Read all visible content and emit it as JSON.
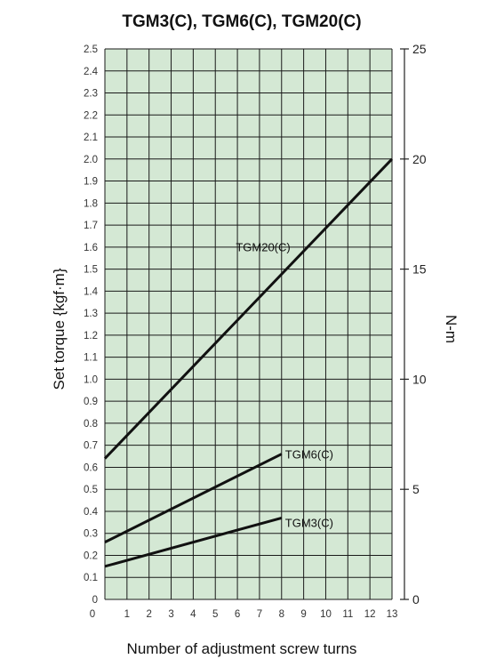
{
  "chart_data": {
    "type": "line",
    "title": "TGM3(C), TGM6(C), TGM20(C)",
    "xlabel": "Number of adjustment screw turns",
    "ylabel": "Set torque {kgf·m}",
    "y2label": "N-m",
    "xlim": [
      0,
      13
    ],
    "ylim": [
      0,
      2.5
    ],
    "y2lim": [
      0,
      25
    ],
    "grid": true,
    "x_ticks": [
      "1",
      "2",
      "3",
      "4",
      "5",
      "6",
      "7",
      "8",
      "9",
      "10",
      "11",
      "12",
      "13"
    ],
    "x_zero_label": "0",
    "y_ticks": [
      "0",
      "0.1",
      "0.2",
      "0.3",
      "0.4",
      "0.5",
      "0.6",
      "0.7",
      "0.8",
      "0.9",
      "1.0",
      "1.1",
      "1.2",
      "1.3",
      "1.4",
      "1.5",
      "1.6",
      "1.7",
      "1.8",
      "1.9",
      "2.0",
      "2.1",
      "2.2",
      "2.3",
      "2.4",
      "2.5"
    ],
    "y2_ticks": [
      "0",
      "5",
      "10",
      "15",
      "20",
      "25"
    ],
    "series": [
      {
        "name": "TGM20(C)",
        "x": [
          0,
          13
        ],
        "y": [
          0.64,
          2.0
        ]
      },
      {
        "name": "TGM6(C)",
        "x": [
          0,
          8
        ],
        "y": [
          0.26,
          0.66
        ]
      },
      {
        "name": "TGM3(C)",
        "x": [
          0,
          8
        ],
        "y": [
          0.15,
          0.37
        ]
      }
    ],
    "colors": {
      "plot_background": "#d4e8d4",
      "grid": "#1a1a1a",
      "line": "#111111"
    }
  }
}
